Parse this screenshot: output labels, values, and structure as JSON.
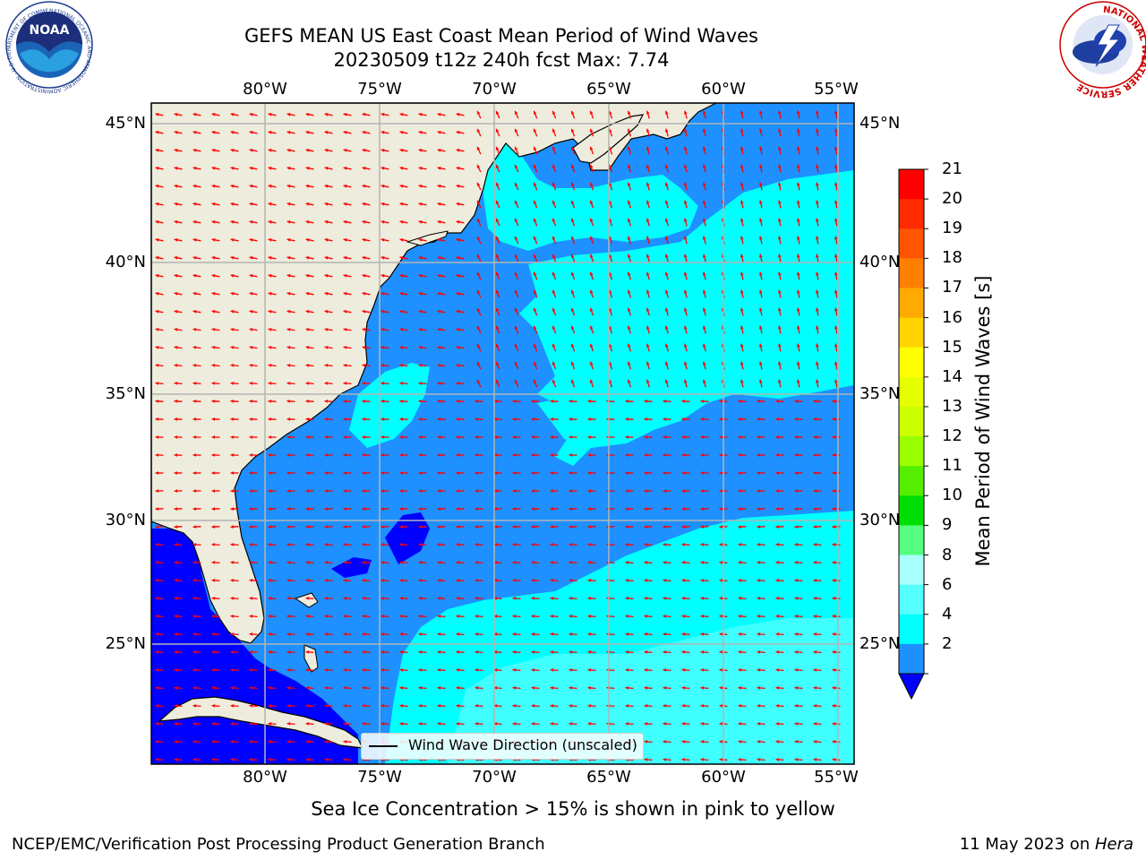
{
  "title": {
    "line1": "GEFS MEAN US East Coast Mean Period of Wind Waves",
    "line2": "20230509 t12z 240h fcst   Max: 7.74"
  },
  "logos": {
    "left": {
      "name": "noaa-logo",
      "text": "NOAA",
      "ring_text": "NATIONAL OCEANIC AND ATMOSPHERIC ADMINISTRATION · U.S. DEPARTMENT OF COMMERCE"
    },
    "right": {
      "name": "nws-logo",
      "ring_text": "NATIONAL WEATHER SERVICE"
    }
  },
  "map": {
    "lon_ticks": [
      "80°W",
      "75°W",
      "70°W",
      "65°W",
      "60°W",
      "55°W"
    ],
    "lat_ticks": [
      "45°N",
      "40°N",
      "35°N",
      "30°N",
      "25°N"
    ],
    "legend": "Wind Wave Direction (unscaled)",
    "colors": {
      "land": "#eeecdc",
      "blue": "#0000ff",
      "mid_blue": "#1e90ff",
      "cyan": "#00ffff",
      "light_cyan": "#40ffff",
      "arrow": "#ff0000",
      "grid": "#b4b4b4"
    }
  },
  "colorbar": {
    "title": "Mean Period of Wind Waves [s]",
    "labels": [
      "21",
      "20",
      "19",
      "18",
      "17",
      "16",
      "15",
      "14",
      "13",
      "12",
      "11",
      "10",
      "9",
      "8",
      "6",
      "4",
      "2"
    ],
    "colors": [
      "#ff0000",
      "#ff2a00",
      "#ff5500",
      "#ff8000",
      "#ffaa00",
      "#ffd400",
      "#ffff00",
      "#e6ff00",
      "#ccff00",
      "#99ff00",
      "#55ee00",
      "#00dd00",
      "#55ff80",
      "#aaffff",
      "#55ffff",
      "#00ffff",
      "#1e90ff"
    ],
    "under_color": "#0000ff"
  },
  "notes": {
    "ice": "Sea Ice Concentration > 15% is shown in pink to yellow"
  },
  "footer": {
    "left": "NCEP/EMC/Verification Post Processing Product Generation Branch",
    "date": "11 May 2023 on ",
    "host": "Hera"
  }
}
